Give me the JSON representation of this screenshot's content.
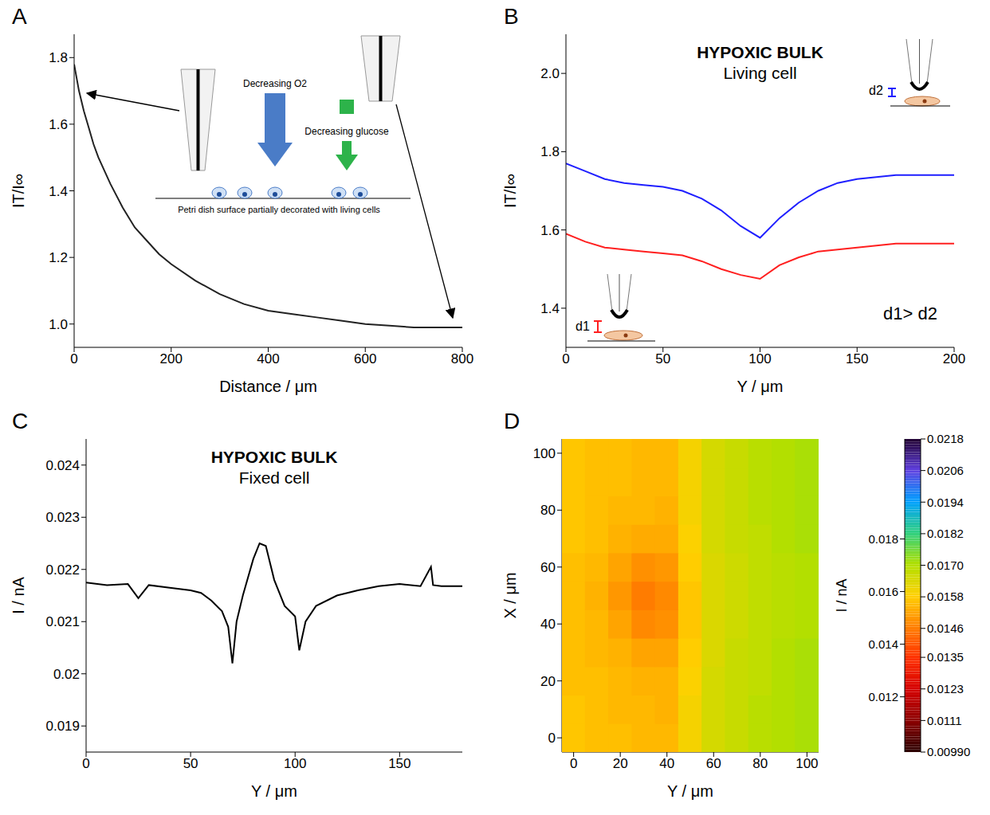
{
  "chart_data": [
    {
      "type": "line",
      "label": "A",
      "x_label": "Distance / μm",
      "y_label": "IT/I∞",
      "xlim": [
        0,
        800
      ],
      "xticks": [
        0,
        200,
        400,
        600,
        800
      ],
      "ylim": [
        0.93,
        1.87
      ],
      "yticks": [
        {
          "value": 1,
          "label": "1.0"
        },
        1.2,
        1.4,
        1.6,
        1.8
      ],
      "x": [
        0,
        10,
        20,
        30,
        40,
        50,
        75,
        100,
        125,
        150,
        175,
        200,
        250,
        300,
        350,
        400,
        450,
        500,
        550,
        600,
        650,
        700,
        750,
        800
      ],
      "series": [
        {
          "color": "#222222",
          "values": [
            1.78,
            1.7,
            1.64,
            1.59,
            1.54,
            1.5,
            1.42,
            1.35,
            1.29,
            1.25,
            1.21,
            1.18,
            1.13,
            1.09,
            1.06,
            1.04,
            1.03,
            1.02,
            1.01,
            1.0,
            0.995,
            0.99,
            0.99,
            0.99
          ]
        }
      ],
      "annotations": [
        "Decreasing O2",
        "Decreasing glucose",
        "Petri dish surface partially decorated with living cells"
      ]
    },
    {
      "type": "line",
      "label": "B",
      "title": "HYPOXIC BULK",
      "subtitle": "Living cell",
      "x_label": "Y / μm",
      "y_label": "IT/I∞",
      "xlim": [
        0,
        200
      ],
      "xticks": [
        0,
        50,
        100,
        150,
        200
      ],
      "ylim": [
        1.3,
        2.1
      ],
      "yticks": [
        1.4,
        1.6,
        1.8,
        {
          "value": 2,
          "label": "2.0"
        }
      ],
      "x": [
        0,
        10,
        20,
        30,
        40,
        50,
        60,
        70,
        80,
        90,
        100,
        110,
        120,
        130,
        140,
        150,
        160,
        170,
        180,
        190,
        200
      ],
      "series": [
        {
          "name": "d2",
          "color": "#1f1fff",
          "values": [
            1.77,
            1.75,
            1.73,
            1.72,
            1.715,
            1.71,
            1.7,
            1.68,
            1.65,
            1.61,
            1.58,
            1.63,
            1.67,
            1.7,
            1.72,
            1.73,
            1.735,
            1.74,
            1.74,
            1.74,
            1.74
          ]
        },
        {
          "name": "d1",
          "color": "#ff1f1f",
          "values": [
            1.59,
            1.57,
            1.555,
            1.55,
            1.545,
            1.54,
            1.535,
            1.52,
            1.5,
            1.485,
            1.475,
            1.51,
            1.53,
            1.545,
            1.55,
            1.555,
            1.56,
            1.565,
            1.565,
            1.565,
            1.565
          ]
        }
      ],
      "annotations": [
        "d1> d2"
      ]
    },
    {
      "type": "line",
      "label": "C",
      "title": "HYPOXIC BULK",
      "subtitle": "Fixed cell",
      "x_label": "Y / μm",
      "y_label": "I / nA",
      "xlim": [
        0,
        180
      ],
      "xticks": [
        0,
        50,
        100,
        150
      ],
      "ylim": [
        0.0185,
        0.0245
      ],
      "yticks": [
        0.019,
        0.02,
        0.021,
        0.022,
        0.023,
        0.024
      ],
      "x": [
        0,
        10,
        20,
        25,
        30,
        40,
        50,
        55,
        60,
        65,
        68,
        70,
        72,
        75,
        80,
        83,
        86,
        90,
        95,
        100,
        102,
        105,
        110,
        120,
        130,
        140,
        150,
        160,
        165,
        166,
        170,
        180
      ],
      "series": [
        {
          "color": "#000000",
          "values": [
            0.02175,
            0.0217,
            0.02172,
            0.02145,
            0.0217,
            0.02165,
            0.0216,
            0.02155,
            0.0214,
            0.0212,
            0.0209,
            0.0202,
            0.021,
            0.0215,
            0.0222,
            0.0225,
            0.02245,
            0.0218,
            0.0213,
            0.0211,
            0.02045,
            0.021,
            0.0213,
            0.0215,
            0.0216,
            0.02168,
            0.02172,
            0.02168,
            0.02205,
            0.0217,
            0.02168,
            0.02168
          ]
        }
      ]
    },
    {
      "type": "heatmap",
      "label": "D",
      "x_label": "Y / μm",
      "y_label": "X / μm",
      "xlim": [
        -5,
        105
      ],
      "xticks": [
        0,
        20,
        40,
        60,
        80,
        100
      ],
      "ylim": [
        -5,
        105
      ],
      "yticks": [
        0,
        20,
        40,
        60,
        80,
        100
      ],
      "col_values": [
        0,
        10,
        20,
        30,
        40,
        50,
        60,
        70,
        80,
        90,
        100
      ],
      "row_values": [
        0,
        10,
        20,
        30,
        40,
        50,
        60,
        70,
        80,
        90,
        100
      ],
      "cells": [
        [
          0.0157,
          0.0156,
          0.0156,
          0.0155,
          0.0155,
          0.016,
          0.0165,
          0.0167,
          0.0169,
          0.017,
          0.0171
        ],
        [
          0.0157,
          0.0156,
          0.0155,
          0.0155,
          0.0154,
          0.016,
          0.0165,
          0.0167,
          0.0169,
          0.017,
          0.0171
        ],
        [
          0.0156,
          0.0156,
          0.0155,
          0.0154,
          0.0154,
          0.0159,
          0.0165,
          0.0167,
          0.0168,
          0.017,
          0.0171
        ],
        [
          0.0156,
          0.0155,
          0.0154,
          0.0152,
          0.0152,
          0.0158,
          0.0164,
          0.0167,
          0.0168,
          0.017,
          0.0171
        ],
        [
          0.0156,
          0.0155,
          0.0152,
          0.0148,
          0.0149,
          0.0157,
          0.0164,
          0.0166,
          0.0168,
          0.0169,
          0.017
        ],
        [
          0.0156,
          0.0154,
          0.015,
          0.0146,
          0.0148,
          0.0157,
          0.0164,
          0.0166,
          0.0168,
          0.0169,
          0.017
        ],
        [
          0.0156,
          0.0155,
          0.0152,
          0.0149,
          0.015,
          0.0158,
          0.0164,
          0.0166,
          0.0168,
          0.0169,
          0.017
        ],
        [
          0.0157,
          0.0156,
          0.0154,
          0.0153,
          0.0153,
          0.0159,
          0.0165,
          0.0167,
          0.0168,
          0.017,
          0.0171
        ],
        [
          0.0157,
          0.0156,
          0.0155,
          0.0155,
          0.0154,
          0.016,
          0.0165,
          0.0167,
          0.0169,
          0.017,
          0.0171
        ],
        [
          0.0157,
          0.0156,
          0.0156,
          0.0155,
          0.0155,
          0.016,
          0.0165,
          0.0167,
          0.0169,
          0.017,
          0.0171
        ],
        [
          0.0157,
          0.0156,
          0.0156,
          0.0155,
          0.0155,
          0.016,
          0.0165,
          0.0167,
          0.0169,
          0.017,
          0.0171
        ]
      ],
      "z_label": "I / nA",
      "zticks": [
        0.012,
        0.014,
        0.016,
        0.018
      ],
      "colorbar_range": [
        0.0099,
        0.0218
      ],
      "colorbar_ticks": [
        0.0218,
        0.0206,
        0.0194,
        0.0182,
        {
          "value": 0.017,
          "label": "0.0170"
        },
        0.0158,
        0.0146,
        0.0135,
        0.0123,
        0.0111,
        {
          "value": 0.0099,
          "label": "0.00990"
        }
      ],
      "colorscale": [
        "#2a0000",
        "#8b0000",
        "#d40000",
        "#ff3000",
        "#ff8000",
        "#ffd000",
        "#b0e000",
        "#30d080",
        "#00a0ff",
        "#6040e0",
        "#200030"
      ]
    }
  ]
}
